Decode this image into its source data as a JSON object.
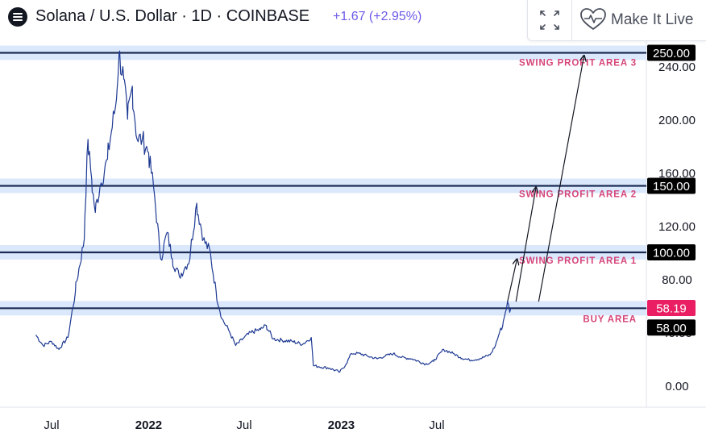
{
  "header": {
    "symbol_title": "Solana / U.S. Dollar · 1D · COINBASE",
    "change": "+1.67 (+2.95%)",
    "make_live_label": "Make It Live"
  },
  "colors": {
    "price_line": "#1f3a93",
    "level_line": "#1c2d55",
    "level_band": "#dbe8fb",
    "zone_label": "#d6457a",
    "current_price_bg": "#e91e63"
  },
  "chart_data": {
    "type": "line",
    "title": "Solana / U.S. Dollar · 1D · COINBASE",
    "xlabel": "",
    "ylabel": "",
    "ylim": [
      -5,
      260
    ],
    "grid": false,
    "x_ticks": [
      {
        "label": "Jul",
        "date": "2021-07-01",
        "bold": false
      },
      {
        "label": "2022",
        "date": "2022-01-01",
        "bold": true
      },
      {
        "label": "Jul",
        "date": "2022-07-01",
        "bold": false
      },
      {
        "label": "2023",
        "date": "2023-01-01",
        "bold": true
      },
      {
        "label": "Jul",
        "date": "2023-07-01",
        "bold": false
      }
    ],
    "y_ticks": [
      "0.00",
      "40.00",
      "80.00",
      "120.00",
      "160.00",
      "200.00",
      "240.00"
    ],
    "series": [
      {
        "points": [
          [
            "2021-06-01",
            38
          ],
          [
            "2021-06-15",
            30
          ],
          [
            "2021-07-01",
            33
          ],
          [
            "2021-07-15",
            27
          ],
          [
            "2021-08-01",
            36
          ],
          [
            "2021-08-15",
            70
          ],
          [
            "2021-09-01",
            110
          ],
          [
            "2021-09-08",
            185
          ],
          [
            "2021-09-15",
            155
          ],
          [
            "2021-09-22",
            130
          ],
          [
            "2021-10-01",
            150
          ],
          [
            "2021-10-15",
            170
          ],
          [
            "2021-11-01",
            215
          ],
          [
            "2021-11-06",
            250
          ],
          [
            "2021-11-15",
            230
          ],
          [
            "2021-11-22",
            200
          ],
          [
            "2021-12-01",
            225
          ],
          [
            "2021-12-10",
            185
          ],
          [
            "2021-12-20",
            185
          ],
          [
            "2022-01-01",
            175
          ],
          [
            "2022-01-10",
            150
          ],
          [
            "2022-01-24",
            95
          ],
          [
            "2022-02-05",
            115
          ],
          [
            "2022-02-15",
            95
          ],
          [
            "2022-02-28",
            82
          ],
          [
            "2022-03-10",
            88
          ],
          [
            "2022-03-20",
            95
          ],
          [
            "2022-04-02",
            137
          ],
          [
            "2022-04-15",
            110
          ],
          [
            "2022-04-28",
            100
          ],
          [
            "2022-05-09",
            70
          ],
          [
            "2022-05-20",
            50
          ],
          [
            "2022-06-01",
            42
          ],
          [
            "2022-06-15",
            30
          ],
          [
            "2022-07-01",
            36
          ],
          [
            "2022-07-15",
            40
          ],
          [
            "2022-08-01",
            42
          ],
          [
            "2022-08-12",
            45
          ],
          [
            "2022-08-25",
            35
          ],
          [
            "2022-09-10",
            34
          ],
          [
            "2022-10-01",
            33
          ],
          [
            "2022-10-20",
            31
          ],
          [
            "2022-11-05",
            36
          ],
          [
            "2022-11-09",
            15
          ],
          [
            "2022-11-20",
            14
          ],
          [
            "2022-12-10",
            13
          ],
          [
            "2022-12-29",
            10
          ],
          [
            "2023-01-10",
            16
          ],
          [
            "2023-01-20",
            24
          ],
          [
            "2023-02-05",
            24
          ],
          [
            "2023-02-20",
            22
          ],
          [
            "2023-03-10",
            20
          ],
          [
            "2023-03-25",
            22
          ],
          [
            "2023-04-10",
            24
          ],
          [
            "2023-04-25",
            21
          ],
          [
            "2023-05-15",
            20
          ],
          [
            "2023-06-10",
            16
          ],
          [
            "2023-06-25",
            18
          ],
          [
            "2023-07-14",
            27
          ],
          [
            "2023-08-01",
            24
          ],
          [
            "2023-08-15",
            21
          ],
          [
            "2023-09-01",
            19
          ],
          [
            "2023-09-20",
            20
          ],
          [
            "2023-10-10",
            23
          ],
          [
            "2023-10-20",
            30
          ],
          [
            "2023-10-28",
            40
          ],
          [
            "2023-11-03",
            45
          ],
          [
            "2023-11-08",
            55
          ],
          [
            "2023-11-12",
            63
          ],
          [
            "2023-11-16",
            55
          ],
          [
            "2023-11-20",
            58.19
          ]
        ]
      }
    ],
    "levels": [
      {
        "label": "250.00",
        "value": 250,
        "zone": "SWING PROFIT AREA 3"
      },
      {
        "label": "150.00",
        "value": 150,
        "zone": "SWING PROFIT AREA 2"
      },
      {
        "label": "100.00",
        "value": 100,
        "zone": "SWING PROFIT AREA 1"
      },
      {
        "label": "58.00",
        "value": 58,
        "zone": "BUY AREA"
      }
    ],
    "current_price": {
      "label": "58.19",
      "value": 58.19
    },
    "arrows": [
      {
        "from": [
          "2023-11-12",
          63
        ],
        "to": [
          "2023-11-30",
          95
        ]
      },
      {
        "from": [
          "2023-11-28",
          63
        ],
        "to": [
          "2024-01-05",
          149
        ]
      },
      {
        "from": [
          "2024-01-10",
          63
        ],
        "to": [
          "2024-04-05",
          248
        ]
      }
    ]
  }
}
